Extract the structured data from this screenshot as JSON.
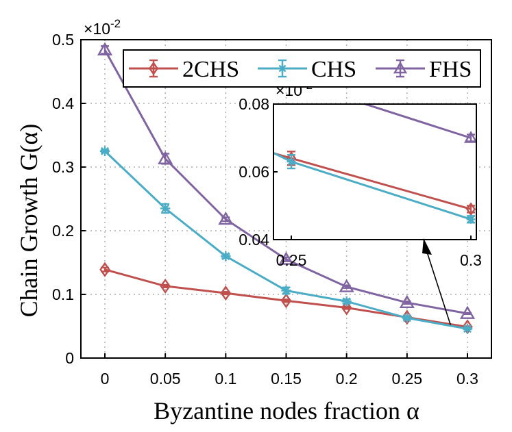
{
  "chart_data": {
    "type": "line",
    "xlabel": "Byzantine nodes fraction α",
    "ylabel": "Chain Growth G(α)",
    "y_multiplier_label": "×10",
    "y_multiplier_exp": "-2",
    "x": [
      0,
      0.05,
      0.1,
      0.15,
      0.2,
      0.25,
      0.3
    ],
    "x_ticks": [
      "0",
      "0.05",
      "0.1",
      "0.15",
      "0.2",
      "0.25",
      "0.3"
    ],
    "ylim": [
      0,
      0.5
    ],
    "y_ticks": [
      "0",
      "0.1",
      "0.2",
      "0.3",
      "0.4",
      "0.5"
    ],
    "grid": true,
    "legend_position": "top",
    "series": [
      {
        "name": "2CHS",
        "color": "#c0504d",
        "marker": "diamond",
        "values": [
          0.139,
          0.113,
          0.102,
          0.09,
          0.079,
          0.064,
          0.049
        ],
        "errors": [
          0.003,
          0.002,
          0.002,
          0.002,
          0.002,
          0.002,
          0.001
        ]
      },
      {
        "name": "CHS",
        "color": "#4bacc6",
        "marker": "star",
        "values": [
          0.325,
          0.235,
          0.16,
          0.106,
          0.089,
          0.063,
          0.046
        ],
        "errors": [
          0.002,
          0.007,
          0.003,
          0.005,
          0.003,
          0.002,
          0.001
        ]
      },
      {
        "name": "FHS",
        "color": "#8064a2",
        "marker": "triangle",
        "values": [
          0.484,
          0.313,
          0.218,
          0.155,
          0.112,
          0.087,
          0.07
        ],
        "errors": [
          0.006,
          0.008,
          0.003,
          0.003,
          0.002,
          0.002,
          0.001
        ]
      }
    ],
    "inset": {
      "xlim": [
        0.25,
        0.3
      ],
      "ylim": [
        0.04,
        0.08
      ],
      "x_ticks": [
        "0.25",
        "0.3"
      ],
      "y_ticks": [
        "0.04",
        "0.06",
        "0.08"
      ],
      "y_multiplier_label": "×10",
      "y_multiplier_exp": "-2"
    }
  }
}
